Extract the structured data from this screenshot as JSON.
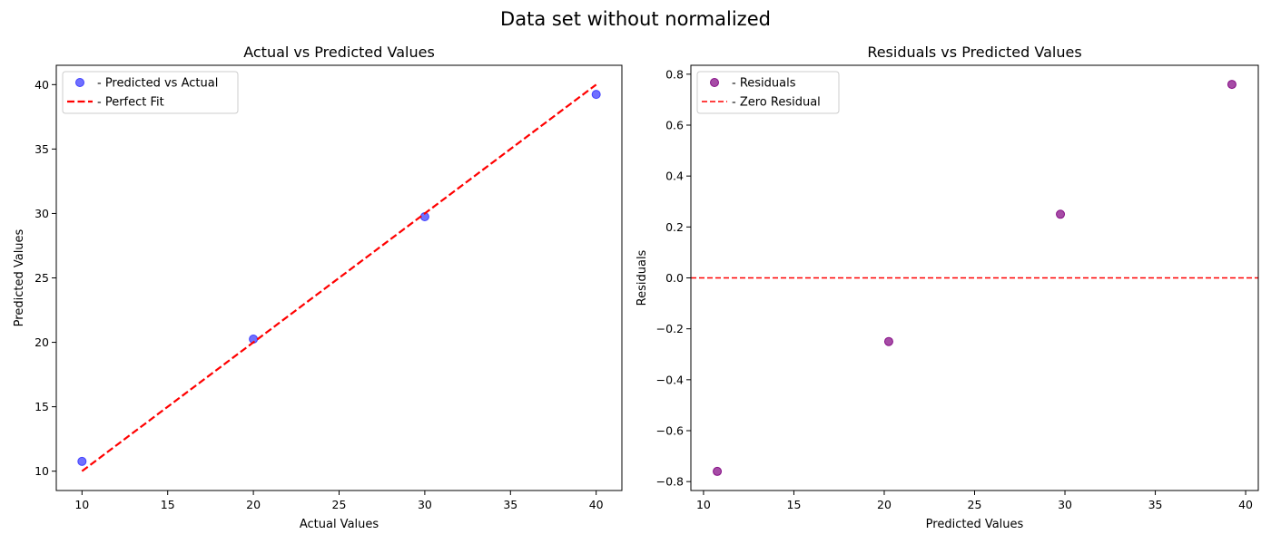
{
  "figure": {
    "title": "Data set without normalized"
  },
  "chart_data": [
    {
      "type": "scatter",
      "title": "Actual vs Predicted Values",
      "xlabel": "Actual Values",
      "ylabel": "Predicted Values",
      "xlim": [
        8.5,
        41.5
      ],
      "ylim": [
        8.5,
        41.5
      ],
      "xticks": [
        10,
        15,
        20,
        25,
        30,
        35,
        40
      ],
      "yticks": [
        10,
        15,
        20,
        25,
        30,
        35,
        40
      ],
      "grid": false,
      "legend_position": "top-left",
      "series": [
        {
          "name": "- Predicted vs Actual",
          "kind": "scatter",
          "color": "#3333ff",
          "x": [
            10,
            20,
            30,
            40
          ],
          "y": [
            10.76,
            20.25,
            29.75,
            39.24
          ]
        },
        {
          "name": "- Perfect Fit",
          "kind": "line",
          "style": "dashed",
          "color": "#ff0000",
          "x": [
            10,
            40
          ],
          "y": [
            10,
            40
          ]
        }
      ]
    },
    {
      "type": "scatter",
      "title": "Residuals vs Predicted Values",
      "xlabel": "Predicted Values",
      "ylabel": "Residuals",
      "xlim": [
        9.3,
        40.7
      ],
      "ylim": [
        -0.835,
        0.835
      ],
      "xticks": [
        10,
        15,
        20,
        25,
        30,
        35,
        40
      ],
      "yticks": [
        -0.8,
        -0.6,
        -0.4,
        -0.2,
        0.0,
        0.2,
        0.4,
        0.6,
        0.8
      ],
      "grid": false,
      "legend_position": "top-left",
      "series": [
        {
          "name": "- Residuals",
          "kind": "scatter",
          "color": "#800080",
          "x": [
            10.76,
            20.25,
            29.75,
            39.24
          ],
          "y": [
            -0.76,
            -0.25,
            0.25,
            0.76
          ]
        },
        {
          "name": "- Zero Residual",
          "kind": "hline",
          "style": "dashed",
          "color": "#ff0000",
          "y": 0.0
        }
      ]
    }
  ]
}
